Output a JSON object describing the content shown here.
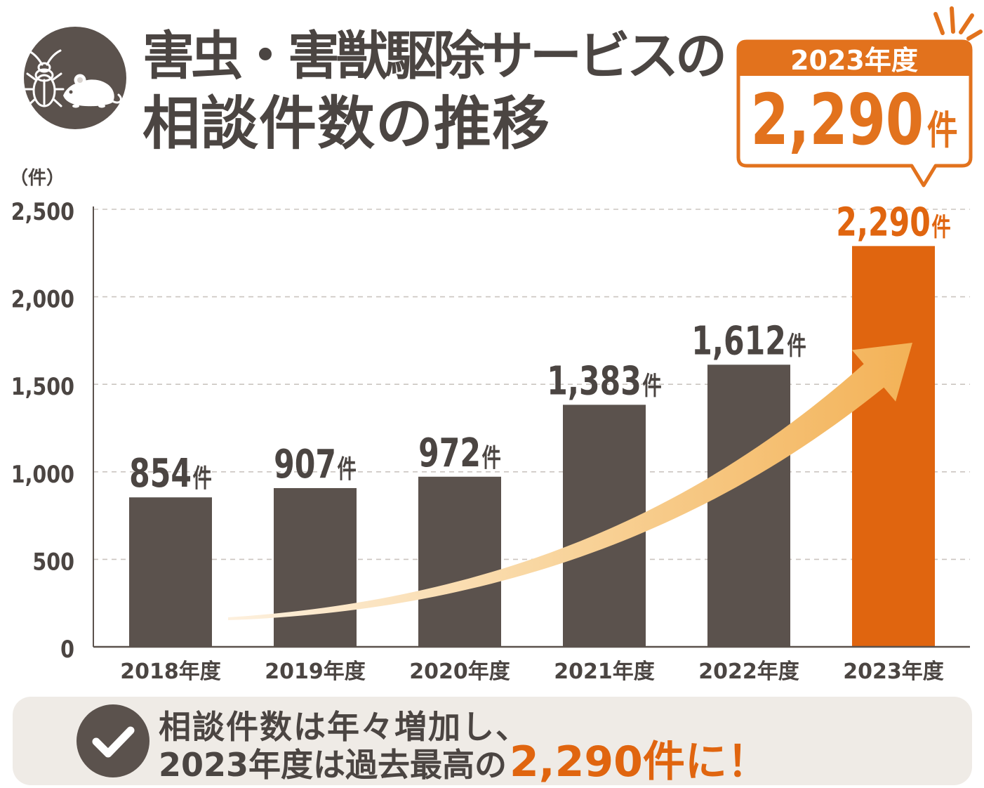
{
  "chart_data": {
    "type": "bar",
    "title": [
      "害虫・害獣駆除サービスの",
      "相談件数の推移"
    ],
    "ylabel": "（件）",
    "categories": [
      "2018年度",
      "2019年度",
      "2020年度",
      "2021年度",
      "2022年度",
      "2023年度"
    ],
    "values": [
      854,
      907,
      972,
      1383,
      1612,
      2290
    ],
    "value_labels": [
      "854",
      "907",
      "972",
      "1,383",
      "1,612",
      "2,290"
    ],
    "value_unit": "件",
    "ylim": [
      0,
      2500
    ],
    "yticks": [
      0,
      500,
      1000,
      1500,
      2000,
      2500
    ],
    "ytick_labels": [
      "0",
      "500",
      "1,000",
      "1,500",
      "2,000",
      "2,500"
    ],
    "grid": true,
    "highlight_index": 5,
    "colors": {
      "bar": "#5b524d",
      "highlight": "#e0650f",
      "text": "#4b4542",
      "arrow": "#f3b257"
    }
  },
  "callout": {
    "year": "2023年度",
    "value": "2,290",
    "unit": "件",
    "color": "#e2721d"
  },
  "summary": {
    "line1": "相談件数は年々増加し、",
    "line2": "2023年度は過去最高の",
    "highlight": "2,290件に！",
    "background": "#efebe6"
  },
  "icons": {
    "header": "cockroach-and-mouse-icon",
    "summary": "check-circle-icon",
    "callout_accent": "sparkle-burst-icon"
  }
}
